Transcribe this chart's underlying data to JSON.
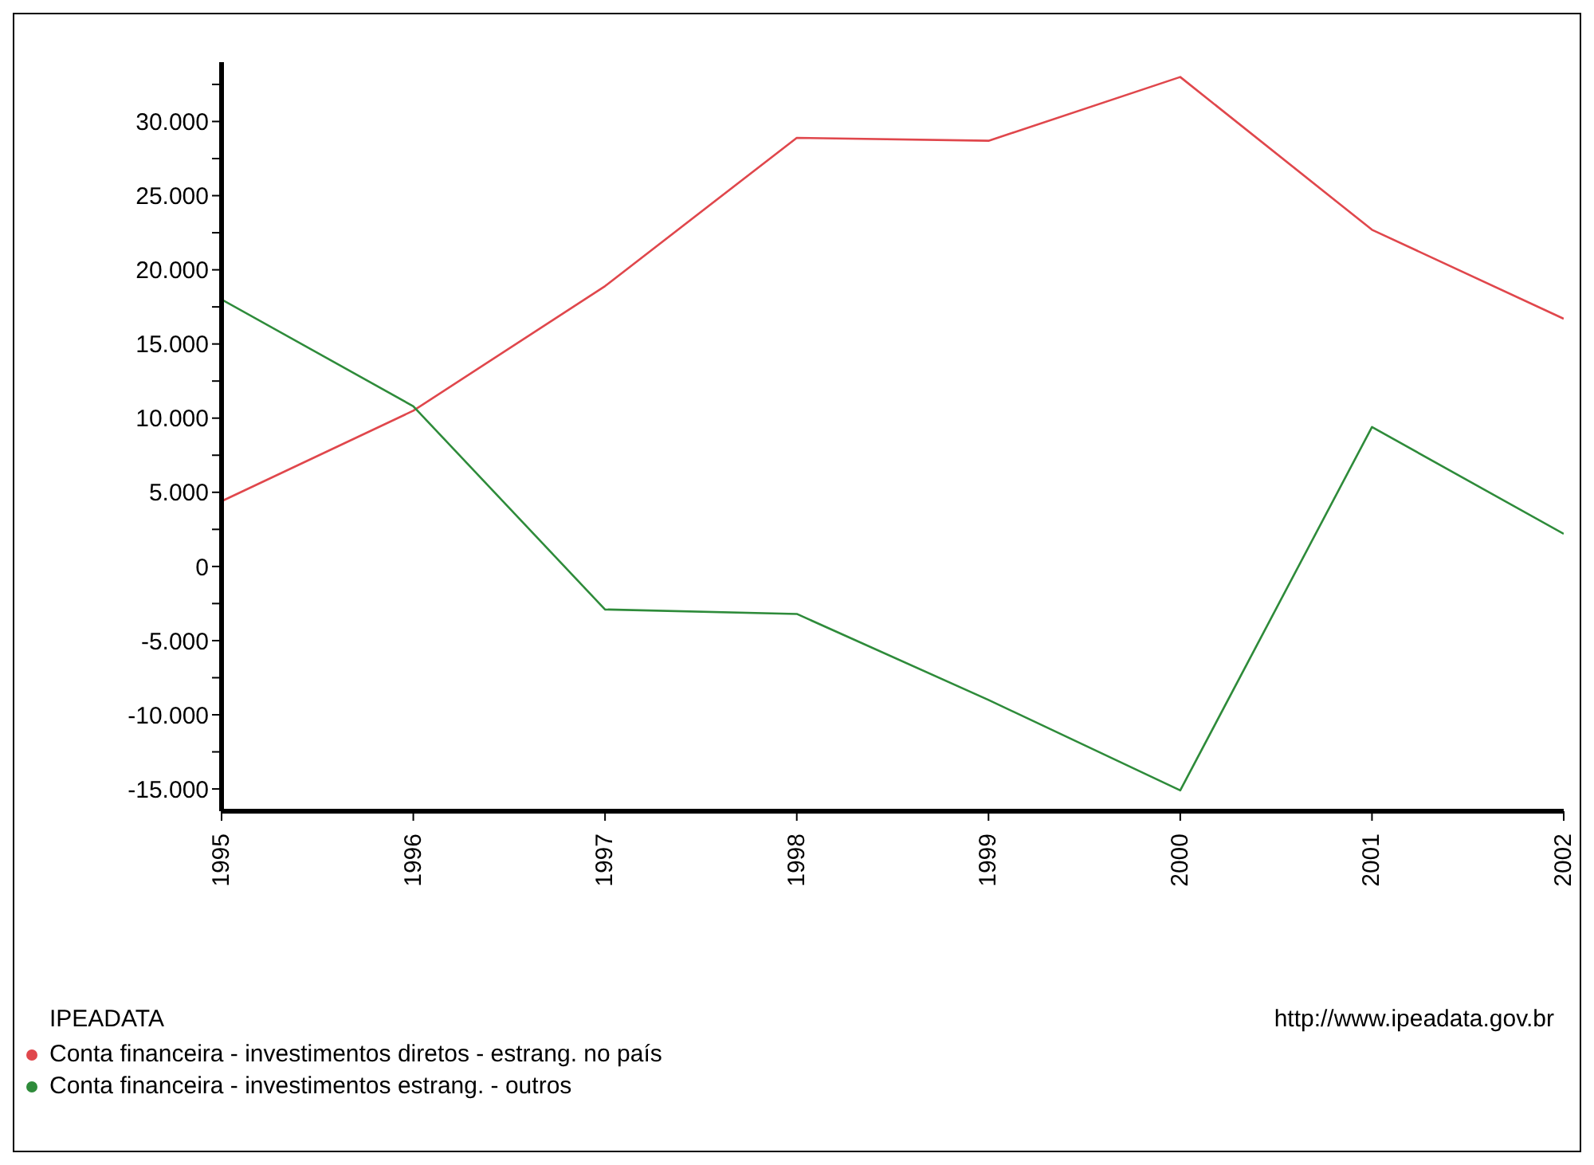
{
  "chart_data": {
    "type": "line",
    "categories": [
      "1995",
      "1996",
      "1997",
      "1998",
      "1999",
      "2000",
      "2001",
      "2002"
    ],
    "series": [
      {
        "name": "Conta financeira - investimentos diretos - estrang. no país",
        "color": "#e0474c",
        "values": [
          4400,
          10500,
          18900,
          28900,
          28700,
          33000,
          22700,
          16700
        ]
      },
      {
        "name": "Conta financeira - investimentos estrang. - outros",
        "color": "#2e8b3a",
        "values": [
          18000,
          10800,
          -2900,
          -3200,
          -9000,
          -15100,
          9400,
          2200
        ]
      }
    ],
    "ylim": [
      -16500,
      34000
    ],
    "yticks": [
      {
        "value": -15000,
        "label": "-15.000"
      },
      {
        "value": -12500,
        "label": null
      },
      {
        "value": -10000,
        "label": "-10.000"
      },
      {
        "value": -7500,
        "label": null
      },
      {
        "value": -5000,
        "label": "-5.000"
      },
      {
        "value": -2500,
        "label": null
      },
      0,
      {
        "value": 2500,
        "label": null
      },
      {
        "value": 5000,
        "label": "5.000"
      },
      {
        "value": 7500,
        "label": null
      },
      {
        "value": 10000,
        "label": "10.000"
      },
      {
        "value": 12500,
        "label": null
      },
      {
        "value": 15000,
        "label": "15.000"
      },
      {
        "value": 17500,
        "label": null
      },
      {
        "value": 20000,
        "label": "20.000"
      },
      {
        "value": 22500,
        "label": null
      },
      {
        "value": 25000,
        "label": "25.000"
      },
      {
        "value": 27500,
        "label": null
      },
      {
        "value": 30000,
        "label": "30.000"
      },
      {
        "value": 32500,
        "label": null
      }
    ],
    "grid": false,
    "legend": "bottom left",
    "marker": "none",
    "line_style": "solid",
    "annotations": [
      "IPEADATA",
      "http://www.ipeadata.gov.br"
    ]
  }
}
